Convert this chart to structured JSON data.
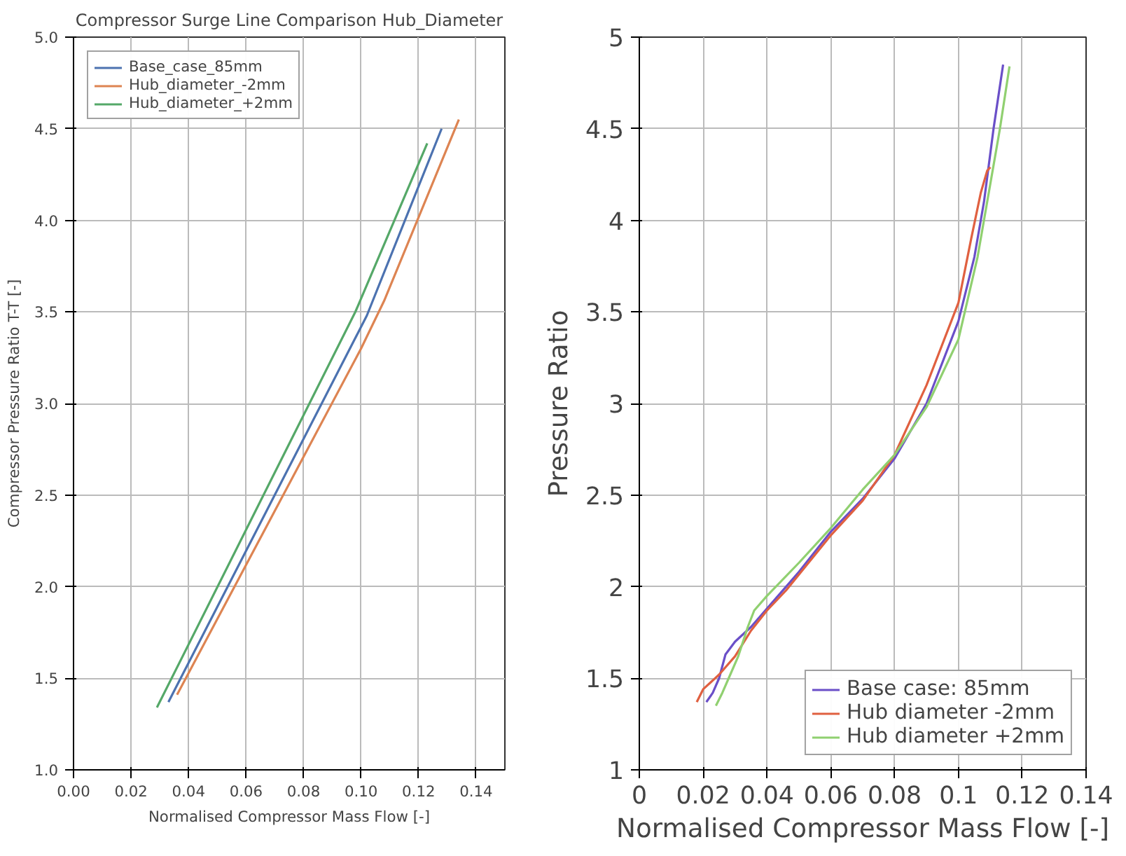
{
  "chart_data": [
    {
      "type": "line",
      "title": "Compressor Surge Line Comparison Hub_Diameter",
      "xlabel": "Normalised Compressor Mass Flow [-]",
      "ylabel": "Compressor Pressure Ratio T-T [-]",
      "xlim": [
        0,
        0.15
      ],
      "xticks": [
        {
          "value": 0,
          "label": "0.00"
        },
        {
          "value": 0.02,
          "label": "0.02"
        },
        {
          "value": 0.04,
          "label": "0.04"
        },
        {
          "value": 0.06,
          "label": "0.06"
        },
        {
          "value": 0.08,
          "label": "0.08"
        },
        {
          "value": 0.1,
          "label": "0.10"
        },
        {
          "value": 0.12,
          "label": "0.12"
        },
        {
          "value": 0.14,
          "label": "0.14"
        }
      ],
      "ylim": [
        1,
        5
      ],
      "yticks": [
        {
          "value": 1,
          "label": "1.0"
        },
        {
          "value": 1.5,
          "label": "1.5"
        },
        {
          "value": 2,
          "label": "2.0"
        },
        {
          "value": 2.5,
          "label": "2.5"
        },
        {
          "value": 3,
          "label": "3.0"
        },
        {
          "value": 3.5,
          "label": "3.5"
        },
        {
          "value": 4,
          "label": "4.0"
        },
        {
          "value": 4.5,
          "label": "4.5"
        },
        {
          "value": 5,
          "label": "5.0"
        }
      ],
      "grid": true,
      "legend": "top left",
      "series": [
        {
          "name": "Base_case_85mm",
          "color": "#4c72b0",
          "x": [
            0.033,
            0.102,
            0.128
          ],
          "values": [
            1.37,
            3.48,
            4.5
          ]
        },
        {
          "name": "Hub_diameter_-2mm",
          "color": "#dd8452",
          "x": [
            0.036,
            0.1,
            0.108,
            0.134
          ],
          "values": [
            1.41,
            3.3,
            3.56,
            4.55
          ]
        },
        {
          "name": "Hub_diameter_+2mm",
          "color": "#55a868",
          "x": [
            0.029,
            0.098,
            0.123
          ],
          "values": [
            1.34,
            3.5,
            4.42
          ]
        }
      ]
    },
    {
      "type": "line",
      "xlabel": "Normalised Compressor Mass Flow [-]",
      "ylabel": "Pressure Ratio",
      "xlim": [
        0,
        0.14
      ],
      "xticks": [
        0,
        0.02,
        0.04,
        0.06,
        0.08,
        0.1,
        0.12,
        0.14
      ],
      "ylim": [
        1,
        5
      ],
      "yticks": [
        1,
        1.5,
        2,
        2.5,
        3,
        3.5,
        4,
        4.5,
        5
      ],
      "grid": true,
      "legend": "bottom right",
      "series": [
        {
          "name": "Base case: 85mm",
          "color": "#6a4fc8",
          "x": [
            0.021,
            0.023,
            0.025,
            0.027,
            0.03,
            0.035,
            0.04,
            0.05,
            0.06,
            0.07,
            0.08,
            0.09,
            0.1,
            0.105,
            0.108,
            0.111,
            0.114
          ],
          "values": [
            1.37,
            1.42,
            1.5,
            1.63,
            1.7,
            1.78,
            1.88,
            2.08,
            2.3,
            2.48,
            2.7,
            3.0,
            3.45,
            3.8,
            4.1,
            4.5,
            4.85
          ]
        },
        {
          "name": "Hub diameter -2mm",
          "color": "#e06040",
          "x": [
            0.018,
            0.02,
            0.025,
            0.03,
            0.035,
            0.04,
            0.046,
            0.06,
            0.07,
            0.08,
            0.09,
            0.1,
            0.104,
            0.107,
            0.109,
            0.11
          ],
          "values": [
            1.37,
            1.44,
            1.52,
            1.62,
            1.76,
            1.87,
            1.98,
            2.28,
            2.47,
            2.72,
            3.1,
            3.55,
            3.9,
            4.15,
            4.27,
            4.29
          ]
        },
        {
          "name": "Hub diameter +2mm",
          "color": "#90d070",
          "x": [
            0.024,
            0.026,
            0.028,
            0.031,
            0.034,
            0.036,
            0.04,
            0.05,
            0.06,
            0.07,
            0.08,
            0.09,
            0.1,
            0.106,
            0.11,
            0.113,
            0.116
          ],
          "values": [
            1.35,
            1.42,
            1.5,
            1.62,
            1.78,
            1.87,
            1.95,
            2.13,
            2.32,
            2.53,
            2.72,
            2.98,
            3.35,
            3.8,
            4.2,
            4.5,
            4.84
          ]
        }
      ]
    }
  ]
}
